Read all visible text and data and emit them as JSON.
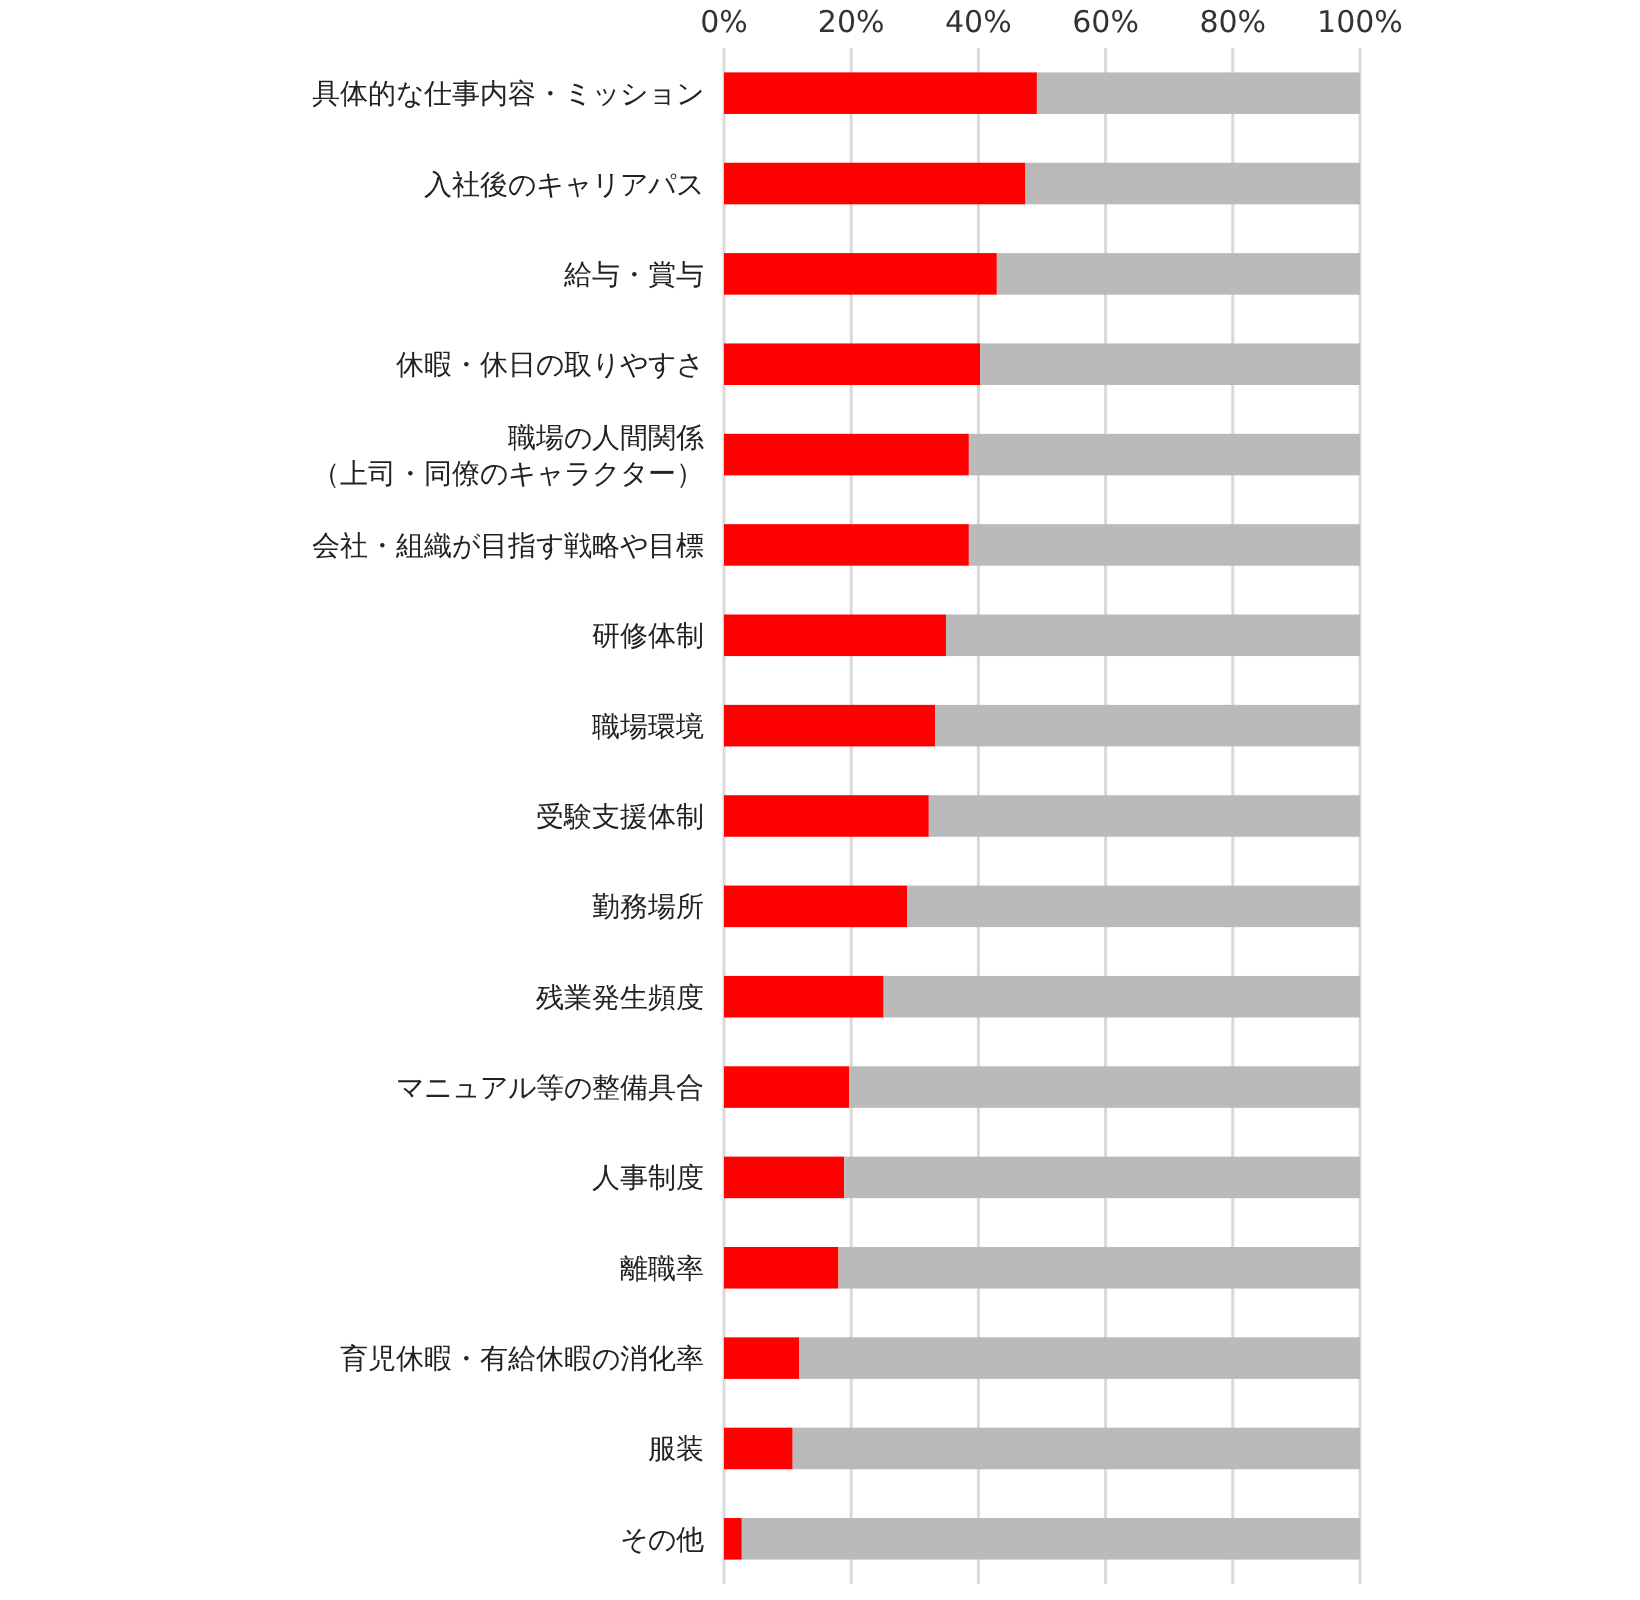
{
  "chart_data": {
    "type": "bar",
    "orientation": "horizontal",
    "stacked": true,
    "categories": [
      "具体的な仕事内容・ミッション",
      "入社後のキャリアパス",
      "給与・賞与",
      "休暇・休日の取りやすさ",
      "職場の人間関係（上司・同僚のキャラクター）",
      "会社・組織が目指す戦略や目標",
      "研修体制",
      "職場環境",
      "受験支援体制",
      "勤務場所",
      "残業発生頻度",
      "マニュアル等の整備具合",
      "人事制度",
      "離職率",
      "育児休暇・有給休暇の消化率",
      "服装",
      "その他"
    ],
    "series": [
      {
        "color": "#ff0000",
        "values": [
          49.2,
          47.4,
          42.9,
          40.3,
          38.5,
          38.5,
          34.9,
          33.2,
          32.2,
          28.8,
          25.1,
          19.7,
          18.9,
          18.0,
          11.8,
          10.8,
          2.8
        ]
      },
      {
        "color": "#bababa",
        "values": [
          50.8,
          52.6,
          57.1,
          59.7,
          61.5,
          61.5,
          65.1,
          66.8,
          67.8,
          71.2,
          74.9,
          80.3,
          81.1,
          82.0,
          88.2,
          89.2,
          97.2
        ]
      }
    ],
    "xlim": [
      0,
      100
    ],
    "xticks": [
      {
        "value": 0,
        "label": "0%"
      },
      {
        "value": 20,
        "label": "20%"
      },
      {
        "value": 40,
        "label": "40%"
      },
      {
        "value": 60,
        "label": "60%"
      },
      {
        "value": 80,
        "label": "80%"
      },
      {
        "value": 100,
        "label": "100%"
      }
    ],
    "grid": "x"
  }
}
